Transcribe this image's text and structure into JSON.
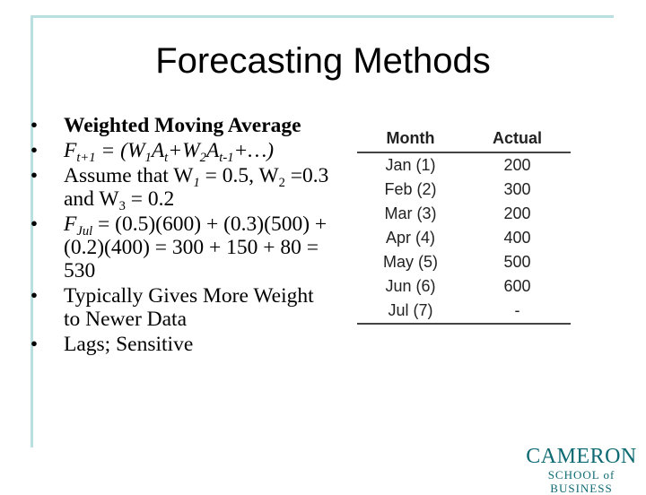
{
  "slide": {
    "title": "Forecasting Methods",
    "bullets": {
      "b1": "Weighted Moving Average",
      "b2": {
        "F": "F",
        "sub_t1": "t+1",
        "eq": " = (W",
        "s1": "1",
        "A1": "A",
        "st": "t",
        "plus": "+W",
        "s2": "2",
        "A2": "A",
        "st1": "t-1",
        "tail": "+…)"
      },
      "b3": {
        "pre": "Assume that W",
        "s1": "1",
        "mid1": " = 0.5, W",
        "s2": "2",
        "mid2": " =0.3 and W",
        "s3": "3",
        "end": " = 0.2"
      },
      "b4": {
        "F": "F",
        "sub": "Jul",
        "rest": " = (0.5)(600) + (0.3)(500) + (0.2)(400) = 300 + 150 + 80 = 530"
      },
      "b5": "Typically Gives More Weight to Newer Data",
      "b6": "Lags; Sensitive"
    },
    "bullet_glyph": "•"
  },
  "table": {
    "headers": {
      "month": "Month",
      "actual": "Actual"
    },
    "rows": [
      {
        "month": "Jan (1)",
        "actual": "200"
      },
      {
        "month": "Feb (2)",
        "actual": "300"
      },
      {
        "month": "Mar (3)",
        "actual": "200"
      },
      {
        "month": "Apr (4)",
        "actual": "400"
      },
      {
        "month": "May (5)",
        "actual": "500"
      },
      {
        "month": "Jun (6)",
        "actual": "600"
      },
      {
        "month": "Jul (7)",
        "actual": "-"
      }
    ]
  },
  "logo": {
    "line1": "CAMERON",
    "line2": "SCHOOL of BUSINESS"
  },
  "colors": {
    "frame": "#b9dfe0",
    "logo": "#0e6a73"
  }
}
